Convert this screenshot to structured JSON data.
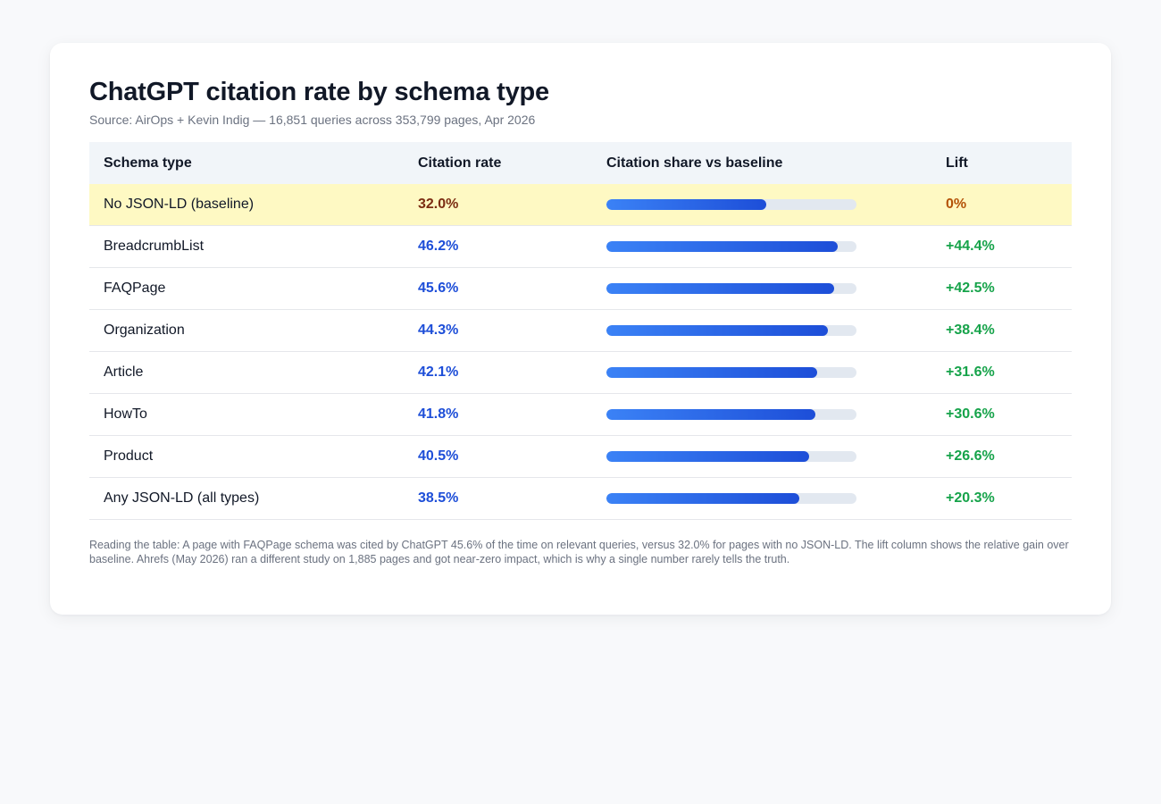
{
  "title": "ChatGPT citation rate by schema type",
  "source": "Source: AirOps + Kevin Indig — 16,851 queries across 353,799 pages, Apr 2026",
  "chart_data": {
    "type": "table",
    "columns": [
      "Schema type",
      "Citation rate",
      "Citation share vs baseline",
      "Lift"
    ],
    "bar_scale_max_pct": 50,
    "rows": [
      {
        "schema": "No JSON-LD (baseline)",
        "rate": "32.0%",
        "rate_value": 32.0,
        "lift": "0%",
        "baseline": true
      },
      {
        "schema": "BreadcrumbList",
        "rate": "46.2%",
        "rate_value": 46.2,
        "lift": "+44.4%"
      },
      {
        "schema": "FAQPage",
        "rate": "45.6%",
        "rate_value": 45.6,
        "lift": "+42.5%"
      },
      {
        "schema": "Organization",
        "rate": "44.3%",
        "rate_value": 44.3,
        "lift": "+38.4%"
      },
      {
        "schema": "Article",
        "rate": "42.1%",
        "rate_value": 42.1,
        "lift": "+31.6%"
      },
      {
        "schema": "HowTo",
        "rate": "41.8%",
        "rate_value": 41.8,
        "lift": "+30.6%"
      },
      {
        "schema": "Product",
        "rate": "40.5%",
        "rate_value": 40.5,
        "lift": "+26.6%"
      },
      {
        "schema": "Any JSON-LD (all types)",
        "rate": "38.5%",
        "rate_value": 38.5,
        "lift": "+20.3%"
      }
    ]
  },
  "note": "Reading the table: A page with FAQPage schema was cited by ChatGPT 45.6% of the time on relevant queries, versus 32.0% for pages with no JSON-LD. The lift column shows the relative gain over baseline. Ahrefs (May 2026) ran a different study on 1,885 pages and got near-zero impact, which is why a single number rarely tells the truth.",
  "colors": {
    "rate": "#1d4ed8",
    "baseline_rate": "#7c2d12",
    "lift": "#16a34a",
    "baseline_lift": "#b45309",
    "baseline_row": "#fef9c3",
    "bar_start": "#3b82f6",
    "bar_end": "#1d4ed8",
    "track": "#e2e8f0"
  }
}
